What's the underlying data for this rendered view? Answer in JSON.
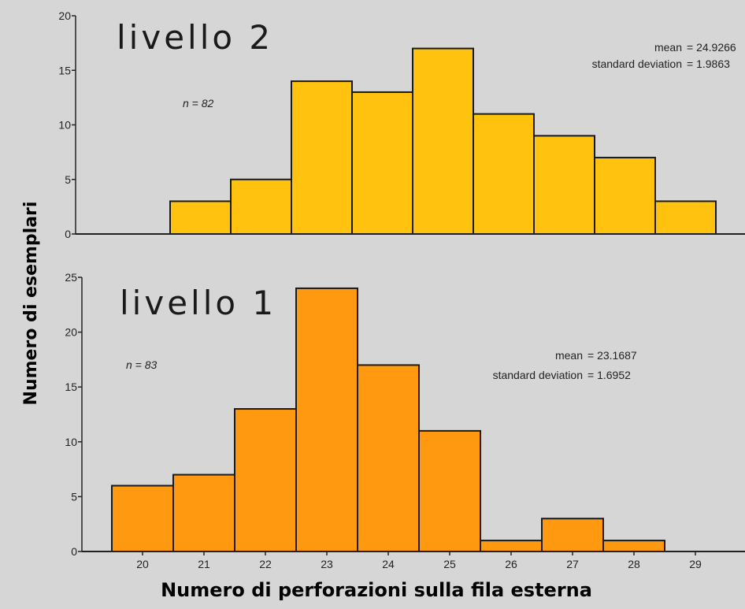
{
  "colors": {
    "background": "#d6d6d6",
    "top_bar_fill": "#ffc20e",
    "bottom_bar_fill": "#ff9a10",
    "bar_stroke": "#1a1a1a"
  },
  "figure": {
    "ylabel": "Numero di esemplari",
    "xlabel": "Numero di perforazioni sulla fila esterna"
  },
  "chart_data": [
    {
      "type": "bar",
      "title": "livello 2",
      "n_label": "n = 82",
      "stats": [
        {
          "label": "mean",
          "value": "= 24.9266"
        },
        {
          "label": "standard deviation",
          "value": "= 1.9863"
        }
      ],
      "categories": [
        20,
        21,
        22,
        23,
        24,
        25,
        26,
        27,
        28,
        29
      ],
      "values": [
        0,
        3,
        5,
        14,
        13,
        17,
        11,
        9,
        7,
        3
      ],
      "ylim": [
        0,
        20
      ],
      "yticks": [
        0,
        5,
        10,
        15,
        20
      ],
      "xtick_labels": []
    },
    {
      "type": "bar",
      "title": "livello 1",
      "n_label": "n = 83",
      "stats": [
        {
          "label": "mean",
          "value": "= 23.1687"
        },
        {
          "label": "standard deviation",
          "value": "= 1.6952"
        }
      ],
      "categories": [
        20,
        21,
        22,
        23,
        24,
        25,
        26,
        27,
        28,
        29
      ],
      "values": [
        6,
        7,
        13,
        24,
        17,
        11,
        1,
        3,
        1,
        0
      ],
      "ylim": [
        0,
        25
      ],
      "yticks": [
        0,
        5,
        10,
        15,
        20,
        25
      ],
      "xtick_labels": [
        "20",
        "21",
        "22",
        "23",
        "24",
        "25",
        "26",
        "27",
        "28",
        "29"
      ]
    }
  ]
}
